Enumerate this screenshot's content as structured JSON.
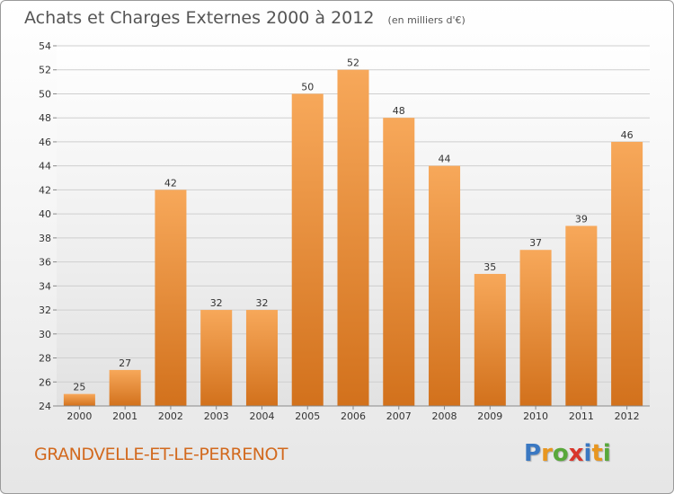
{
  "header": {
    "title": "Achats et Charges Externes 2000 à 2012",
    "unit": "(en milliers d'€)"
  },
  "footer": {
    "commune": "GRANDVELLE-ET-LE-PERRENOT",
    "logo_text": "Proxiti",
    "logo_letters": [
      {
        "ch": "P",
        "color": "#3a78c2"
      },
      {
        "ch": "r",
        "color": "#e8961f"
      },
      {
        "ch": "o",
        "color": "#59a83b"
      },
      {
        "ch": "x",
        "color": "#d9362b"
      },
      {
        "ch": "i",
        "color": "#3a78c2"
      },
      {
        "ch": "t",
        "color": "#e8961f"
      },
      {
        "ch": "i",
        "color": "#59a83b"
      }
    ]
  },
  "chart_data": {
    "type": "bar",
    "title": "Achats et Charges Externes 2000 à 2012",
    "subtitle": "(en milliers d'€)",
    "xlabel": "",
    "ylabel": "",
    "categories": [
      "2000",
      "2001",
      "2002",
      "2003",
      "2004",
      "2005",
      "2006",
      "2007",
      "2008",
      "2009",
      "2010",
      "2011",
      "2012"
    ],
    "values": [
      25,
      27,
      42,
      32,
      32,
      50,
      52,
      48,
      44,
      35,
      37,
      39,
      46
    ],
    "data_labels": [
      "25",
      "27",
      "42",
      "32",
      "32",
      "50",
      "52",
      "48",
      "44",
      "35",
      "37",
      "39",
      "46"
    ],
    "ylim": [
      24,
      54
    ],
    "yticks": [
      24,
      26,
      28,
      30,
      32,
      34,
      36,
      38,
      40,
      42,
      44,
      46,
      48,
      50,
      52,
      54
    ],
    "grid": true,
    "legend": "none",
    "colors": {
      "bar_top": "#f7a85a",
      "bar_bottom": "#d2711c",
      "grid": "#cfcfcf",
      "plot_bg_top": "#ffffff",
      "plot_bg_bottom": "#e2e2e2"
    }
  }
}
